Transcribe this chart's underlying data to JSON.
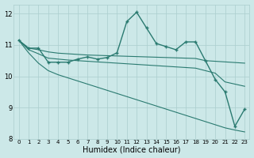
{
  "title": "",
  "xlabel": "Humidex (Indice chaleur)",
  "ylabel": "",
  "bg_color": "#cce8e8",
  "line_color": "#2a7a70",
  "grid_color": "#aacece",
  "xlim": [
    -0.5,
    23.5
  ],
  "ylim": [
    8,
    12.3
  ],
  "yticks": [
    8,
    9,
    10,
    11,
    12
  ],
  "xticks": [
    0,
    1,
    2,
    3,
    4,
    5,
    6,
    7,
    8,
    9,
    10,
    11,
    12,
    13,
    14,
    15,
    16,
    17,
    18,
    19,
    20,
    21,
    22,
    23
  ],
  "series": [
    {
      "data": [
        11.15,
        10.9,
        10.9,
        10.45,
        10.45,
        10.45,
        10.55,
        10.62,
        10.55,
        10.6,
        10.75,
        11.75,
        12.05,
        11.55,
        11.05,
        10.95,
        10.85,
        11.1,
        11.1,
        10.5,
        9.9,
        9.5,
        8.4,
        8.95
      ],
      "markers": true,
      "linewidth": 1.0
    },
    {
      "data": [
        11.15,
        10.9,
        10.85,
        10.78,
        10.74,
        10.72,
        10.7,
        10.68,
        10.67,
        10.66,
        10.65,
        10.64,
        10.63,
        10.62,
        10.61,
        10.6,
        10.59,
        10.58,
        10.57,
        10.5,
        10.48,
        10.46,
        10.44,
        10.42
      ],
      "markers": false,
      "linewidth": 0.8
    },
    {
      "data": [
        11.15,
        10.85,
        10.72,
        10.58,
        10.55,
        10.52,
        10.5,
        10.48,
        10.46,
        10.44,
        10.42,
        10.4,
        10.38,
        10.36,
        10.34,
        10.32,
        10.3,
        10.28,
        10.26,
        10.18,
        10.1,
        9.82,
        9.75,
        9.68
      ],
      "markers": false,
      "linewidth": 0.8
    },
    {
      "data": [
        11.15,
        10.75,
        10.42,
        10.18,
        10.05,
        9.95,
        9.85,
        9.75,
        9.65,
        9.55,
        9.45,
        9.35,
        9.25,
        9.15,
        9.05,
        8.95,
        8.85,
        8.75,
        8.65,
        8.55,
        8.45,
        8.35,
        8.28,
        8.22
      ],
      "markers": false,
      "linewidth": 0.8
    }
  ]
}
